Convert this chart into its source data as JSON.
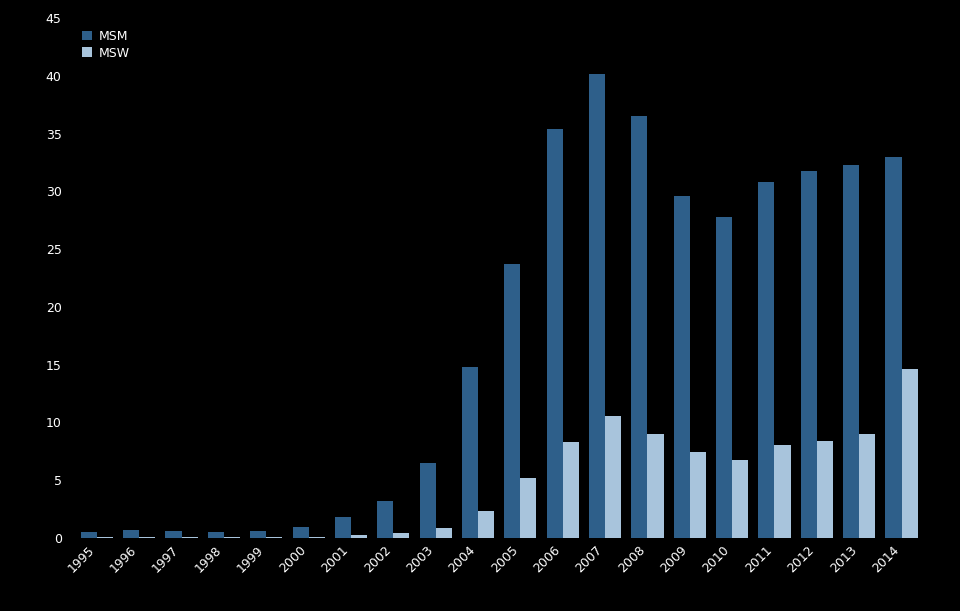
{
  "title": "",
  "years": [
    "1995",
    "1996",
    "1997",
    "1998",
    "1999",
    "2000",
    "2001",
    "2002",
    "2003",
    "2004",
    "2005",
    "2006",
    "2007",
    "2008",
    "2009",
    "2010",
    "2011",
    "2012",
    "2013",
    "2014"
  ],
  "msm": [
    0.5,
    0.7,
    0.6,
    0.5,
    0.6,
    0.9,
    1.8,
    3.2,
    6.5,
    14.8,
    23.7,
    35.4,
    40.2,
    36.5,
    29.6,
    27.8,
    30.8,
    31.8,
    32.3,
    33.0
  ],
  "msw": [
    0.1,
    0.1,
    0.1,
    0.1,
    0.1,
    0.1,
    0.2,
    0.4,
    0.8,
    2.3,
    5.2,
    8.3,
    10.5,
    9.0,
    7.4,
    6.7,
    8.0,
    8.4,
    9.0,
    14.6
  ],
  "msm_color": "#2E5F8A",
  "msw_color": "#A8C4DC",
  "background_color": "#000000",
  "text_color": "#ffffff",
  "ylim": [
    0,
    45
  ],
  "yticks": [
    0,
    5,
    10,
    15,
    20,
    25,
    30,
    35,
    40,
    45
  ],
  "legend_msm": "MSM",
  "legend_msw": "MSW",
  "bar_width": 0.38,
  "tick_fontsize": 9,
  "legend_fontsize": 9
}
